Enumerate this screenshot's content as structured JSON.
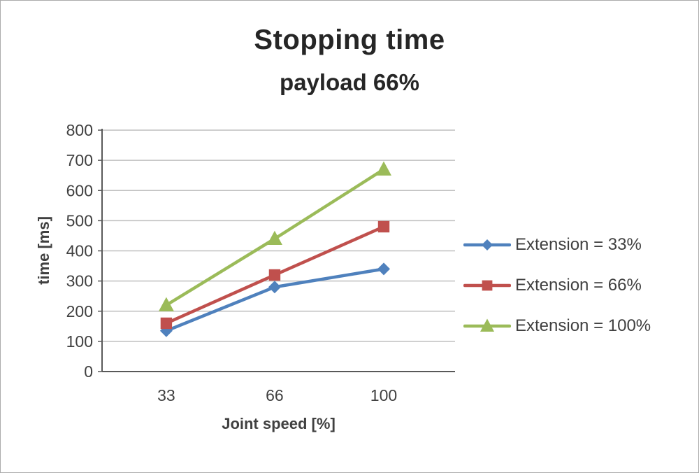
{
  "chart_data": {
    "type": "line",
    "title": "Stopping time",
    "subtitle": "payload 66%",
    "xlabel": "Joint speed [%]",
    "ylabel": "time [ms]",
    "categories": [
      "33",
      "66",
      "100"
    ],
    "y_ticks": [
      0,
      100,
      200,
      300,
      400,
      500,
      600,
      700,
      800
    ],
    "ylim": [
      0,
      800
    ],
    "grid": true,
    "legend_position": "right",
    "series": [
      {
        "name": "Extension = 33%",
        "marker": "diamond",
        "color": "#4F81BD",
        "values": [
          135,
          280,
          340
        ]
      },
      {
        "name": "Extension = 66%",
        "marker": "square",
        "color": "#C0504D",
        "values": [
          160,
          320,
          480
        ]
      },
      {
        "name": "Extension = 100%",
        "marker": "triangle",
        "color": "#9BBB59",
        "values": [
          220,
          440,
          670
        ]
      }
    ],
    "axis_color": "#595959",
    "grid_color": "#bfbfbf",
    "tick_text_color": "#404040"
  }
}
